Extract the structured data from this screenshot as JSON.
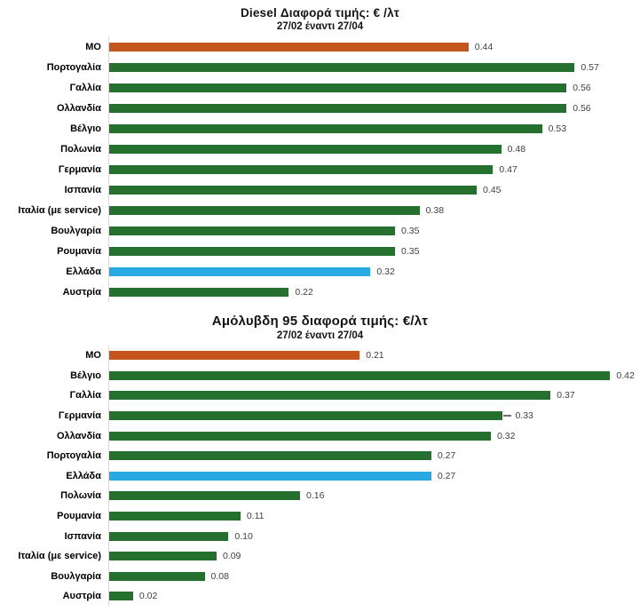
{
  "colors": {
    "bar_default": "#256F2F",
    "bar_average": "#C4551D",
    "bar_greece": "#29A9E1",
    "value_label": "#404040",
    "axis_line": "#d9d9d9"
  },
  "chart_data": [
    {
      "type": "bar",
      "orientation": "horizontal",
      "title": "Diesel Διαφορά τιμής: € /λτ",
      "subtitle": "27/02 έναντι 27/04",
      "xlabel": "",
      "ylabel": "",
      "xlim": [
        0,
        0.65
      ],
      "grid": false,
      "legend": "none",
      "categories": [
        "ΜΟ",
        "Πορτογαλία",
        "Γαλλία",
        "Ολλανδία",
        "Βέλγιο",
        "Πολωνία",
        "Γερμανία",
        "Ισπανία",
        "Ιταλία (με service)",
        "Βουλγαρία",
        "Ρουμανία",
        "Ελλάδα",
        "Αυστρία"
      ],
      "values": [
        0.44,
        0.57,
        0.56,
        0.56,
        0.53,
        0.48,
        0.47,
        0.45,
        0.38,
        0.35,
        0.35,
        0.32,
        0.22
      ],
      "value_labels": [
        "0.44",
        "0.57",
        "0.56",
        "0.56",
        "0.53",
        "0.48",
        "0.47",
        "0.45",
        "0.38",
        "0.35",
        "0.35",
        "0.32",
        "0.22"
      ],
      "bar_color_keys": [
        "bar_average",
        "bar_default",
        "bar_default",
        "bar_default",
        "bar_default",
        "bar_default",
        "bar_default",
        "bar_default",
        "bar_default",
        "bar_default",
        "bar_default",
        "bar_greece",
        "bar_default"
      ],
      "leader_dash_index": -1
    },
    {
      "type": "bar",
      "orientation": "horizontal",
      "title": "Αμόλυβδη 95 διαφορά τιμής: €/λτ",
      "subtitle": "27/02 έναντι 27/04",
      "xlabel": "",
      "ylabel": "",
      "xlim": [
        0,
        0.445
      ],
      "grid": false,
      "legend": "none",
      "categories": [
        "ΜΟ",
        "Βέλγιο",
        "Γαλλία",
        "Γερμανία",
        "Ολλανδία",
        "Πορτογαλία",
        "Ελλάδα",
        "Πολωνία",
        "Ρουμανία",
        "Ισπανία",
        "Ιταλία (με service)",
        "Βουλγαρία",
        "Αυστρία"
      ],
      "values": [
        0.21,
        0.42,
        0.37,
        0.33,
        0.32,
        0.27,
        0.27,
        0.16,
        0.11,
        0.1,
        0.09,
        0.08,
        0.02
      ],
      "value_labels": [
        "0.21",
        "0.42",
        "0.37",
        "0.33",
        "0.32",
        "0.27",
        "0.27",
        "0.16",
        "0.11",
        "0.10",
        "0.09",
        "0.08",
        "0.02"
      ],
      "bar_color_keys": [
        "bar_average",
        "bar_default",
        "bar_default",
        "bar_default",
        "bar_default",
        "bar_default",
        "bar_greece",
        "bar_default",
        "bar_default",
        "bar_default",
        "bar_default",
        "bar_default",
        "bar_default"
      ],
      "leader_dash_index": 3
    }
  ]
}
